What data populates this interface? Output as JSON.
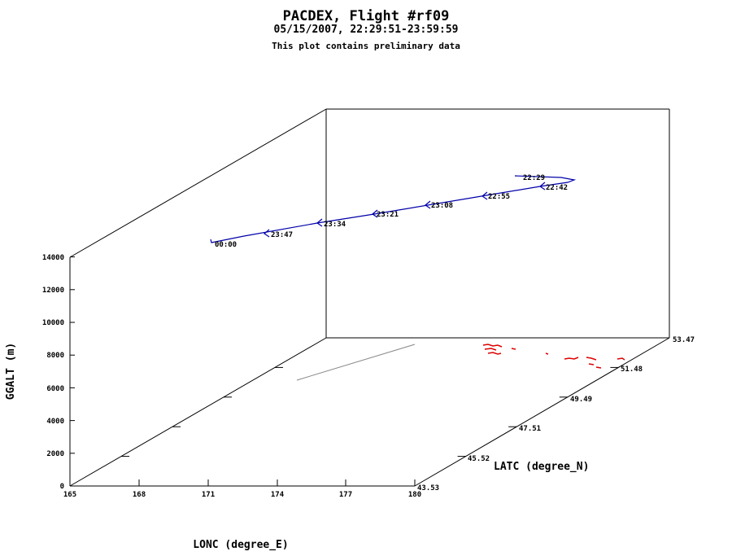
{
  "chart_data": {
    "type": "line",
    "title": "PACDEX, Flight #rf09",
    "subtitle": "05/15/2007, 22:29:51-23:59:59",
    "note": "This plot contains preliminary data",
    "xlabel": "LONC (degree_E)",
    "ylabel": "LATC (degree_N)",
    "zlabel": "GGALT (m)",
    "xlim": [
      165,
      180
    ],
    "ylim": [
      43.53,
      53.47
    ],
    "zlim": [
      0,
      14000
    ],
    "x_ticks": [
      "165",
      "168",
      "171",
      "174",
      "177",
      "180"
    ],
    "y_ticks": [
      "43.53",
      "45.52",
      "47.51",
      "49.49",
      "51.48",
      "53.47"
    ],
    "z_ticks": [
      "0",
      "2000",
      "4000",
      "6000",
      "8000",
      "10000",
      "12000",
      "14000"
    ],
    "time_labels": [
      "22:29",
      "22:42",
      "22:55",
      "23:08",
      "23:21",
      "23:34",
      "23:47",
      "00:00"
    ],
    "colors": {
      "track": "#0000aa",
      "ground_track": "#888888",
      "terrain": "#dd0000",
      "axes": "#000000"
    }
  }
}
